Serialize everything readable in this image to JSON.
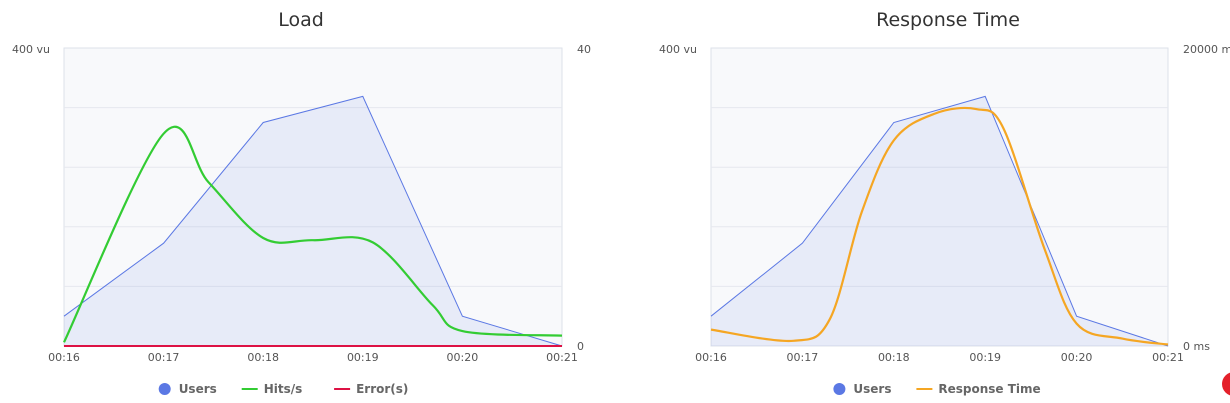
{
  "chart_data": [
    {
      "type": "line",
      "title": "Load",
      "x": [
        "00:16",
        "00:17",
        "00:18",
        "00:19",
        "00:20",
        "00:21"
      ],
      "y_left": {
        "ticks": [
          "400 vu"
        ],
        "range": [
          0,
          400
        ]
      },
      "y_right": {
        "ticks": [
          "40",
          "0"
        ],
        "range": [
          0,
          40
        ]
      },
      "grid": true,
      "legend_position": "bottom",
      "series": [
        {
          "name": "Users",
          "axis": "left",
          "style": "area",
          "color": "#5b78e4",
          "x": [
            0,
            1,
            2,
            3,
            4,
            5
          ],
          "y": [
            40,
            138,
            300,
            335,
            40,
            0
          ]
        },
        {
          "name": "Hits/s",
          "axis": "right",
          "style": "smooth",
          "color": "#33cc33",
          "x": [
            0,
            1,
            1.45,
            2,
            2.5,
            3.1,
            3.7,
            4,
            5
          ],
          "y": [
            0.5,
            28.5,
            22,
            14.5,
            14.2,
            13.9,
            5.5,
            2,
            1.4
          ]
        },
        {
          "name": "Error(s)",
          "axis": "right",
          "style": "line",
          "color": "#dd1144",
          "x": [
            0,
            5
          ],
          "y": [
            0,
            0
          ]
        }
      ]
    },
    {
      "type": "line",
      "title": "Response Time",
      "x": [
        "00:16",
        "00:17",
        "00:18",
        "00:19",
        "00:20",
        "00:21"
      ],
      "y_left": {
        "ticks": [
          "400 vu"
        ],
        "range": [
          0,
          400
        ]
      },
      "y_right": {
        "ticks": [
          "20000 m",
          "0 ms"
        ],
        "range": [
          0,
          20000
        ]
      },
      "grid": true,
      "legend_position": "bottom",
      "series": [
        {
          "name": "Users",
          "axis": "left",
          "style": "area",
          "color": "#5b78e4",
          "x": [
            0,
            1,
            2,
            3,
            4,
            5
          ],
          "y": [
            40,
            138,
            300,
            335,
            40,
            0
          ]
        },
        {
          "name": "Response Time",
          "axis": "right",
          "style": "smooth",
          "color": "#f5a623",
          "x": [
            0,
            0.9,
            1.3,
            1.65,
            2,
            2.45,
            2.9,
            3.2,
            3.65,
            4,
            4.5,
            5
          ],
          "y": [
            1100,
            350,
            1800,
            9000,
            13800,
            15600,
            15900,
            14600,
            6500,
            1500,
            500,
            100
          ]
        }
      ]
    }
  ]
}
